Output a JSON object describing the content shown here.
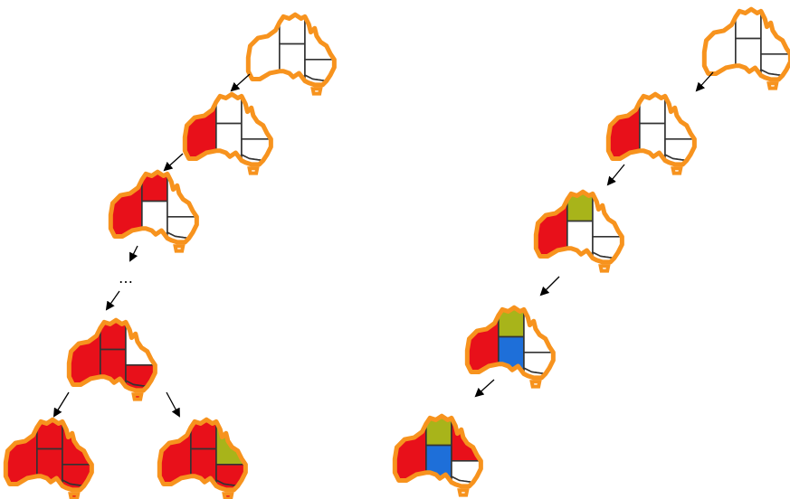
{
  "colors": {
    "outline": "#f7931e",
    "border": "#333333",
    "red": "#e8101a",
    "green": "#a8b41a",
    "blue": "#1e6fd9",
    "uncolored": "#ffffff",
    "arrow": "#000000"
  },
  "map_regions": [
    "WA",
    "NT",
    "SA",
    "QLD",
    "NSW",
    "VIC",
    "TAS"
  ],
  "left_tree": {
    "ellipsis": "…",
    "states": [
      {
        "WA": "uncolored",
        "NT": "uncolored",
        "SA": "uncolored",
        "QLD": "uncolored",
        "NSW": "uncolored",
        "VIC": "uncolored",
        "TAS": "uncolored"
      },
      {
        "WA": "red",
        "NT": "uncolored",
        "SA": "uncolored",
        "QLD": "uncolored",
        "NSW": "uncolored",
        "VIC": "uncolored",
        "TAS": "uncolored"
      },
      {
        "WA": "red",
        "NT": "red",
        "SA": "uncolored",
        "QLD": "uncolored",
        "NSW": "uncolored",
        "VIC": "uncolored",
        "TAS": "uncolored"
      },
      {
        "WA": "red",
        "NT": "red",
        "SA": "red",
        "QLD": "uncolored",
        "NSW": "red",
        "VIC": "red",
        "TAS": "red"
      },
      {
        "WA": "red",
        "NT": "red",
        "SA": "red",
        "QLD": "red",
        "NSW": "red",
        "VIC": "red",
        "TAS": "red"
      },
      {
        "WA": "red",
        "NT": "red",
        "SA": "red",
        "QLD": "green",
        "NSW": "red",
        "VIC": "red",
        "TAS": "red"
      }
    ]
  },
  "right_tree": {
    "states": [
      {
        "WA": "uncolored",
        "NT": "uncolored",
        "SA": "uncolored",
        "QLD": "uncolored",
        "NSW": "uncolored",
        "VIC": "uncolored",
        "TAS": "uncolored"
      },
      {
        "WA": "red",
        "NT": "uncolored",
        "SA": "uncolored",
        "QLD": "uncolored",
        "NSW": "uncolored",
        "VIC": "uncolored",
        "TAS": "uncolored"
      },
      {
        "WA": "red",
        "NT": "green",
        "SA": "uncolored",
        "QLD": "uncolored",
        "NSW": "uncolored",
        "VIC": "uncolored",
        "TAS": "uncolored"
      },
      {
        "WA": "red",
        "NT": "green",
        "SA": "blue",
        "QLD": "uncolored",
        "NSW": "uncolored",
        "VIC": "uncolored",
        "TAS": "uncolored"
      },
      {
        "WA": "red",
        "NT": "green",
        "SA": "blue",
        "QLD": "red",
        "NSW": "uncolored",
        "VIC": "uncolored",
        "TAS": "uncolored"
      }
    ]
  }
}
